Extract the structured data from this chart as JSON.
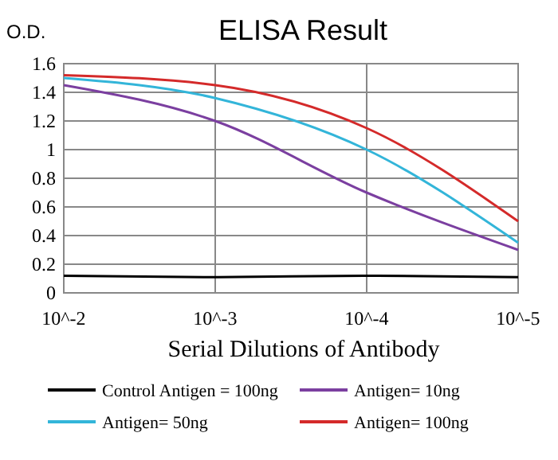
{
  "chart_data": {
    "type": "line",
    "title": "ELISA Result",
    "ylabel": "O.D.",
    "xlabel": "Serial Dilutions  of Antibody",
    "categories": [
      "10^-2",
      "10^-3",
      "10^-4",
      "10^-5"
    ],
    "series": [
      {
        "name": "Control Antigen = 100ng",
        "color": "#000000",
        "values": [
          0.12,
          0.11,
          0.12,
          0.11
        ]
      },
      {
        "name": "Antigen= 10ng",
        "color": "#7b3fa0",
        "values": [
          1.45,
          1.2,
          0.7,
          0.3
        ]
      },
      {
        "name": "Antigen= 50ng",
        "color": "#33b5d9",
        "values": [
          1.5,
          1.36,
          1.0,
          0.35
        ]
      },
      {
        "name": "Antigen= 100ng",
        "color": "#d42a2a",
        "values": [
          1.52,
          1.45,
          1.15,
          0.5
        ]
      }
    ],
    "ylim": [
      0,
      1.6
    ],
    "yticks": [
      0,
      0.2,
      0.4,
      0.6,
      0.8,
      1,
      1.2,
      1.4,
      1.6
    ],
    "grid": true,
    "legend": "bottom",
    "marker": "none",
    "line_style": "solid"
  }
}
